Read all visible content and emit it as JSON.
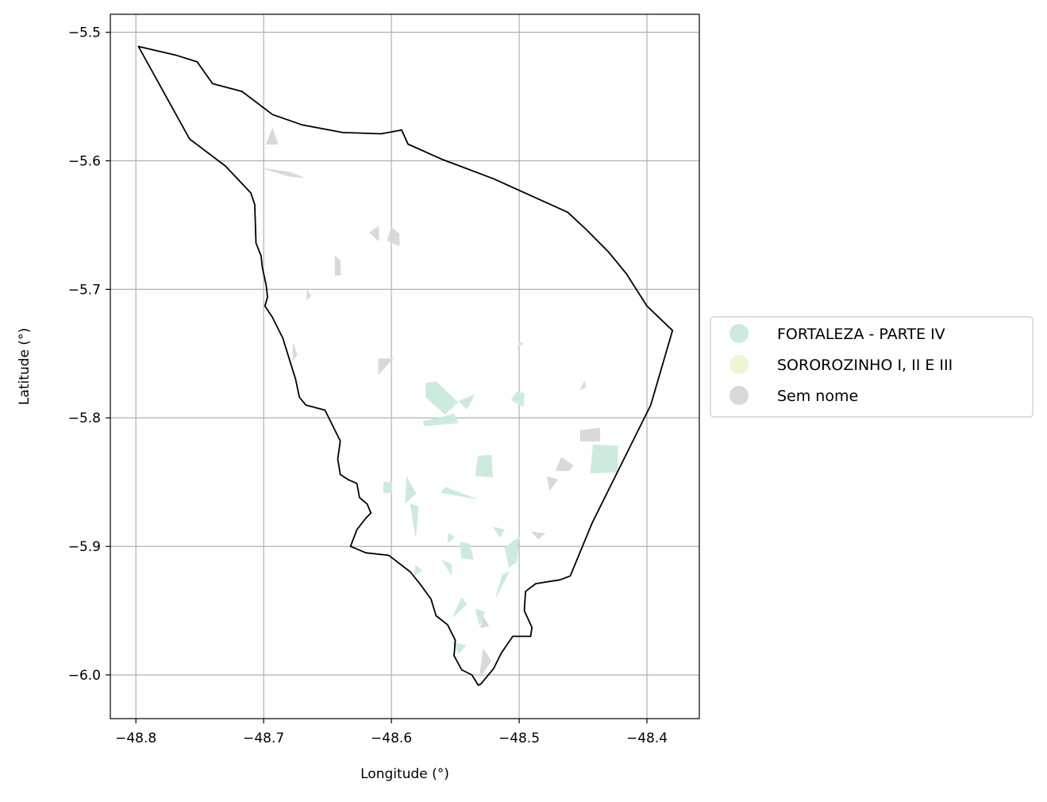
{
  "map": {
    "xlabel": "Longitude (°)",
    "ylabel": "Latitude (°)",
    "xlim": [
      -48.82,
      -48.359
    ],
    "ylim": [
      -6.034,
      -5.486
    ],
    "x_ticks": [
      -48.8,
      -48.7,
      -48.6,
      -48.5,
      -48.4
    ],
    "x_tick_labels": [
      "−48.8",
      "−48.7",
      "−48.6",
      "−48.5",
      "−48.4"
    ],
    "y_ticks": [
      -5.5,
      -5.6,
      -5.7,
      -5.8,
      -5.9,
      -6.0
    ],
    "y_tick_labels": [
      "−5.5",
      "−5.6",
      "−5.7",
      "−5.8",
      "−5.9",
      "−6.0"
    ],
    "grid": true,
    "legend_position": "right",
    "legend": [
      {
        "label": "FORTALEZA - PARTE IV",
        "color": "#cdebdd"
      },
      {
        "label": "SOROROZINHO I, II E III",
        "color": "#ebf7d6"
      },
      {
        "label": "Sem nome",
        "color": "#d9d9d9"
      }
    ],
    "boundary_color": "#000000",
    "grid_color": "#b0b0b0",
    "boundary": [
      [
        -48.798,
        -5.511
      ],
      [
        -48.768,
        -5.518
      ],
      [
        -48.752,
        -5.523
      ],
      [
        -48.74,
        -5.54
      ],
      [
        -48.717,
        -5.546
      ],
      [
        -48.693,
        -5.564
      ],
      [
        -48.67,
        -5.572
      ],
      [
        -48.638,
        -5.578
      ],
      [
        -48.608,
        -5.579
      ],
      [
        -48.592,
        -5.576
      ],
      [
        -48.587,
        -5.587
      ],
      [
        -48.56,
        -5.599
      ],
      [
        -48.52,
        -5.614
      ],
      [
        -48.462,
        -5.64
      ],
      [
        -48.447,
        -5.654
      ],
      [
        -48.43,
        -5.671
      ],
      [
        -48.416,
        -5.688
      ],
      [
        -48.4,
        -5.713
      ],
      [
        -48.38,
        -5.732
      ],
      [
        -48.397,
        -5.79
      ],
      [
        -48.42,
        -5.836
      ],
      [
        -48.443,
        -5.882
      ],
      [
        -48.46,
        -5.923
      ],
      [
        -48.468,
        -5.926
      ],
      [
        -48.487,
        -5.929
      ],
      [
        -48.495,
        -5.935
      ],
      [
        -48.496,
        -5.95
      ],
      [
        -48.49,
        -5.963
      ],
      [
        -48.491,
        -5.97
      ],
      [
        -48.505,
        -5.97
      ],
      [
        -48.514,
        -5.983
      ],
      [
        -48.52,
        -5.995
      ],
      [
        -48.53,
        -6.007
      ],
      [
        -48.532,
        -6.008
      ],
      [
        -48.537,
        -6.0
      ],
      [
        -48.545,
        -5.996
      ],
      [
        -48.551,
        -5.985
      ],
      [
        -48.55,
        -5.973
      ],
      [
        -48.556,
        -5.961
      ],
      [
        -48.565,
        -5.954
      ],
      [
        -48.569,
        -5.941
      ],
      [
        -48.577,
        -5.93
      ],
      [
        -48.585,
        -5.92
      ],
      [
        -48.602,
        -5.907
      ],
      [
        -48.62,
        -5.905
      ],
      [
        -48.632,
        -5.9
      ],
      [
        -48.627,
        -5.887
      ],
      [
        -48.62,
        -5.878
      ],
      [
        -48.616,
        -5.874
      ],
      [
        -48.619,
        -5.867
      ],
      [
        -48.625,
        -5.862
      ],
      [
        -48.627,
        -5.851
      ],
      [
        -48.634,
        -5.848
      ],
      [
        -48.64,
        -5.844
      ],
      [
        -48.642,
        -5.832
      ],
      [
        -48.64,
        -5.818
      ],
      [
        -48.652,
        -5.794
      ],
      [
        -48.667,
        -5.79
      ],
      [
        -48.672,
        -5.784
      ],
      [
        -48.675,
        -5.77
      ],
      [
        -48.685,
        -5.738
      ],
      [
        -48.693,
        -5.722
      ],
      [
        -48.699,
        -5.713
      ],
      [
        -48.697,
        -5.706
      ],
      [
        -48.698,
        -5.697
      ],
      [
        -48.701,
        -5.683
      ],
      [
        -48.702,
        -5.674
      ],
      [
        -48.706,
        -5.664
      ],
      [
        -48.707,
        -5.634
      ],
      [
        -48.71,
        -5.625
      ],
      [
        -48.73,
        -5.604
      ],
      [
        -48.758,
        -5.583
      ]
    ],
    "regions_fortaleza": [
      [
        [
          -48.573,
          -5.773
        ],
        [
          -48.565,
          -5.772
        ],
        [
          -48.548,
          -5.788
        ],
        [
          -48.558,
          -5.797
        ],
        [
          -48.573,
          -5.784
        ]
      ],
      [
        [
          -48.547,
          -5.787
        ],
        [
          -48.535,
          -5.782
        ],
        [
          -48.541,
          -5.793
        ]
      ],
      [
        [
          -48.575,
          -5.803
        ],
        [
          -48.551,
          -5.797
        ],
        [
          -48.548,
          -5.804
        ],
        [
          -48.574,
          -5.806
        ]
      ],
      [
        [
          -48.502,
          -5.78
        ],
        [
          -48.496,
          -5.781
        ],
        [
          -48.497,
          -5.791
        ],
        [
          -48.506,
          -5.786
        ]
      ],
      [
        [
          -48.532,
          -5.83
        ],
        [
          -48.522,
          -5.829
        ],
        [
          -48.521,
          -5.846
        ],
        [
          -48.534,
          -5.845
        ]
      ],
      [
        [
          -48.558,
          -5.854
        ],
        [
          -48.534,
          -5.863
        ],
        [
          -48.561,
          -5.858
        ]
      ],
      [
        [
          -48.588,
          -5.846
        ],
        [
          -48.581,
          -5.859
        ],
        [
          -48.589,
          -5.866
        ]
      ],
      [
        [
          -48.606,
          -5.85
        ],
        [
          -48.6,
          -5.85
        ],
        [
          -48.6,
          -5.858
        ],
        [
          -48.606,
          -5.858
        ]
      ],
      [
        [
          -48.585,
          -5.867
        ],
        [
          -48.579,
          -5.869
        ],
        [
          -48.581,
          -5.892
        ]
      ],
      [
        [
          -48.442,
          -5.821
        ],
        [
          -48.423,
          -5.822
        ],
        [
          -48.423,
          -5.842
        ],
        [
          -48.444,
          -5.843
        ]
      ],
      [
        [
          -48.52,
          -5.885
        ],
        [
          -48.512,
          -5.887
        ],
        [
          -48.515,
          -5.893
        ]
      ],
      [
        [
          -48.546,
          -5.897
        ],
        [
          -48.539,
          -5.898
        ],
        [
          -48.536,
          -5.91
        ],
        [
          -48.545,
          -5.909
        ]
      ],
      [
        [
          -48.511,
          -5.901
        ],
        [
          -48.5,
          -5.893
        ],
        [
          -48.502,
          -5.912
        ],
        [
          -48.508,
          -5.916
        ]
      ],
      [
        [
          -48.56,
          -5.911
        ],
        [
          -48.553,
          -5.914
        ],
        [
          -48.553,
          -5.922
        ]
      ],
      [
        [
          -48.581,
          -5.915
        ],
        [
          -48.576,
          -5.919
        ],
        [
          -48.582,
          -5.922
        ]
      ],
      [
        [
          -48.513,
          -5.922
        ],
        [
          -48.508,
          -5.92
        ],
        [
          -48.518,
          -5.939
        ]
      ],
      [
        [
          -48.545,
          -5.94
        ],
        [
          -48.541,
          -5.945
        ],
        [
          -48.552,
          -5.955
        ]
      ],
      [
        [
          -48.534,
          -5.949
        ],
        [
          -48.527,
          -5.951
        ],
        [
          -48.531,
          -5.961
        ]
      ],
      [
        [
          -48.552,
          -5.975
        ],
        [
          -48.542,
          -5.977
        ],
        [
          -48.547,
          -5.983
        ]
      ],
      [
        [
          -48.5,
          -5.741
        ],
        [
          -48.497,
          -5.742
        ],
        [
          -48.501,
          -5.745
        ]
      ],
      [
        [
          -48.555,
          -5.89
        ],
        [
          -48.551,
          -5.893
        ],
        [
          -48.556,
          -5.897
        ]
      ]
    ],
    "regions_sem_nome": [
      [
        [
          -48.7,
          -5.606
        ],
        [
          -48.679,
          -5.609
        ],
        [
          -48.669,
          -5.613
        ],
        [
          -48.68,
          -5.612
        ]
      ],
      [
        [
          -48.698,
          -5.587
        ],
        [
          -48.693,
          -5.575
        ],
        [
          -48.689,
          -5.587
        ]
      ],
      [
        [
          -48.6,
          -5.652
        ],
        [
          -48.594,
          -5.657
        ],
        [
          -48.594,
          -5.666
        ],
        [
          -48.603,
          -5.662
        ]
      ],
      [
        [
          -48.617,
          -5.656
        ],
        [
          -48.61,
          -5.651
        ],
        [
          -48.61,
          -5.662
        ]
      ],
      [
        [
          -48.644,
          -5.674
        ],
        [
          -48.64,
          -5.678
        ],
        [
          -48.64,
          -5.689
        ],
        [
          -48.644,
          -5.689
        ]
      ],
      [
        [
          -48.666,
          -5.701
        ],
        [
          -48.663,
          -5.705
        ],
        [
          -48.666,
          -5.708
        ]
      ],
      [
        [
          -48.677,
          -5.742
        ],
        [
          -48.674,
          -5.751
        ],
        [
          -48.677,
          -5.755
        ]
      ],
      [
        [
          -48.61,
          -5.754
        ],
        [
          -48.599,
          -5.754
        ],
        [
          -48.61,
          -5.766
        ]
      ],
      [
        [
          -48.449,
          -5.772
        ],
        [
          -48.448,
          -5.776
        ],
        [
          -48.452,
          -5.778
        ]
      ],
      [
        [
          -48.452,
          -5.81
        ],
        [
          -48.437,
          -5.808
        ],
        [
          -48.437,
          -5.818
        ],
        [
          -48.452,
          -5.818
        ]
      ],
      [
        [
          -48.467,
          -5.831
        ],
        [
          -48.458,
          -5.837
        ],
        [
          -48.461,
          -5.841
        ],
        [
          -48.471,
          -5.841
        ]
      ],
      [
        [
          -48.478,
          -5.846
        ],
        [
          -48.47,
          -5.848
        ],
        [
          -48.476,
          -5.856
        ]
      ],
      [
        [
          -48.49,
          -5.889
        ],
        [
          -48.48,
          -5.89
        ],
        [
          -48.485,
          -5.894
        ]
      ],
      [
        [
          -48.528,
          -5.955
        ],
        [
          -48.524,
          -5.962
        ],
        [
          -48.53,
          -5.963
        ]
      ],
      [
        [
          -48.528,
          -5.98
        ],
        [
          -48.522,
          -5.989
        ],
        [
          -48.531,
          -6.002
        ]
      ]
    ]
  }
}
